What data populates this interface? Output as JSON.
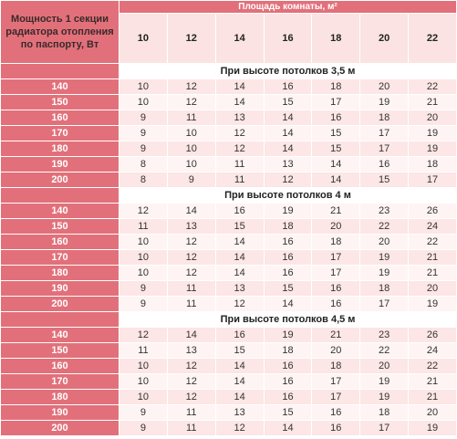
{
  "header": {
    "left": "Мощность 1 секции радиатора отопления по паспорту, Вт",
    "area": "Площадь комнаты, м²",
    "columns": [
      10,
      12,
      14,
      16,
      18,
      20,
      22
    ]
  },
  "sections": [
    {
      "title": "При высоте потолков 3,5 м",
      "rows": [
        {
          "power": 140,
          "values": [
            10,
            12,
            14,
            16,
            18,
            20,
            22
          ]
        },
        {
          "power": 150,
          "values": [
            10,
            12,
            14,
            15,
            17,
            19,
            21
          ]
        },
        {
          "power": 160,
          "values": [
            9,
            11,
            13,
            14,
            16,
            18,
            20
          ]
        },
        {
          "power": 170,
          "values": [
            9,
            10,
            12,
            14,
            15,
            17,
            19
          ]
        },
        {
          "power": 180,
          "values": [
            9,
            10,
            12,
            14,
            15,
            17,
            19
          ]
        },
        {
          "power": 190,
          "values": [
            8,
            10,
            11,
            13,
            14,
            16,
            18
          ]
        },
        {
          "power": 200,
          "values": [
            8,
            9,
            11,
            12,
            14,
            15,
            17
          ]
        }
      ]
    },
    {
      "title": "При высоте потолков 4 м",
      "rows": [
        {
          "power": 140,
          "values": [
            12,
            14,
            16,
            19,
            21,
            23,
            26
          ]
        },
        {
          "power": 150,
          "values": [
            11,
            13,
            15,
            18,
            20,
            22,
            24
          ]
        },
        {
          "power": 160,
          "values": [
            10,
            12,
            14,
            16,
            18,
            20,
            22
          ]
        },
        {
          "power": 170,
          "values": [
            10,
            12,
            14,
            16,
            17,
            19,
            21
          ]
        },
        {
          "power": 180,
          "values": [
            10,
            12,
            14,
            16,
            17,
            19,
            21
          ]
        },
        {
          "power": 190,
          "values": [
            9,
            11,
            13,
            15,
            16,
            18,
            20
          ]
        },
        {
          "power": 200,
          "values": [
            9,
            11,
            12,
            14,
            16,
            17,
            19
          ]
        }
      ]
    },
    {
      "title": "При высоте потолков 4,5 м",
      "rows": [
        {
          "power": 140,
          "values": [
            12,
            14,
            16,
            19,
            21,
            23,
            26
          ]
        },
        {
          "power": 150,
          "values": [
            11,
            13,
            15,
            18,
            20,
            22,
            24
          ]
        },
        {
          "power": 160,
          "values": [
            10,
            12,
            14,
            16,
            18,
            20,
            22
          ]
        },
        {
          "power": 170,
          "values": [
            10,
            12,
            14,
            16,
            17,
            19,
            21
          ]
        },
        {
          "power": 180,
          "values": [
            10,
            12,
            14,
            16,
            17,
            19,
            21
          ]
        },
        {
          "power": 190,
          "values": [
            9,
            11,
            13,
            15,
            16,
            18,
            20
          ]
        },
        {
          "power": 200,
          "values": [
            9,
            11,
            12,
            14,
            16,
            17,
            19
          ]
        }
      ]
    }
  ]
}
